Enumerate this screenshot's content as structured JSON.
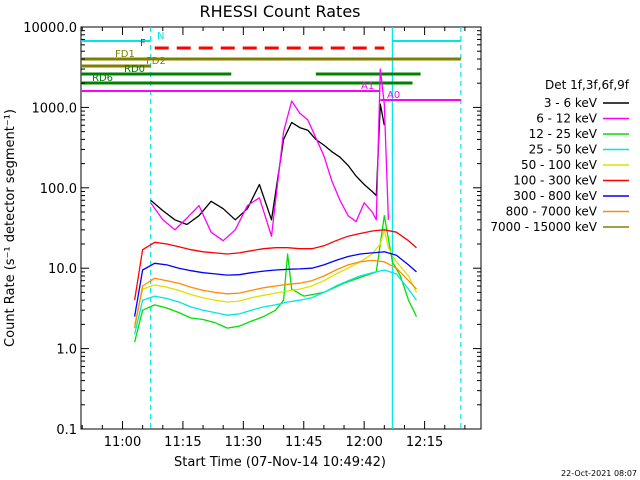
{
  "chart_data": {
    "type": "line",
    "title": "RHESSI Count Rates",
    "xlabel": "Start Time (07-Nov-14 10:49:42)",
    "ylabel": "Count Rate (s⁻¹ detector segment⁻¹)",
    "y_scale": "log",
    "ylim": [
      0.1,
      10000
    ],
    "xlim": [
      "10:49:42",
      "12:29:00"
    ],
    "x_ticks": [
      "11:00",
      "11:15",
      "11:30",
      "11:45",
      "12:00",
      "12:15"
    ],
    "y_ticks": [
      "0.1",
      "1.0",
      "10.0",
      "100.0",
      "1000.0",
      "10000.0"
    ],
    "grid": false,
    "legend": {
      "position": "right",
      "title": "Det 1f,3f,6f,9f",
      "entries": [
        {
          "label": "3 - 6 keV",
          "color": "#000000"
        },
        {
          "label": "6 - 12 keV",
          "color": "#ff00ff"
        },
        {
          "label": "12 - 25 keV",
          "color": "#00e000"
        },
        {
          "label": "25 - 50 keV",
          "color": "#00e5e5"
        },
        {
          "label": "50 - 100 keV",
          "color": "#e0e000"
        },
        {
          "label": "100 - 300 keV",
          "color": "#ff0000"
        },
        {
          "label": "300 - 800 keV",
          "color": "#0000ff"
        },
        {
          "label": "800 - 7000 keV",
          "color": "#ff8c00"
        },
        {
          "label": "7000 - 15000 keV",
          "color": "#808000"
        }
      ]
    },
    "series": [
      {
        "name": "3 - 6 keV",
        "color": "#000000",
        "x": [
          "11:07",
          "11:10",
          "11:13",
          "11:16",
          "11:19",
          "11:22",
          "11:25",
          "11:28",
          "11:31",
          "11:34",
          "11:37",
          "11:40",
          "11:42",
          "11:44",
          "11:46",
          "11:48",
          "11:50",
          "11:52",
          "11:54",
          "11:56",
          "11:58",
          "12:00",
          "12:02",
          "12:03",
          "12:04",
          "12:05"
        ],
        "y": [
          70,
          52,
          40,
          35,
          45,
          68,
          55,
          40,
          55,
          110,
          40,
          400,
          650,
          560,
          520,
          400,
          340,
          280,
          240,
          190,
          140,
          110,
          90,
          80,
          1100,
          600
        ]
      },
      {
        "name": "6 - 12 keV",
        "color": "#ff00ff",
        "x": [
          "11:07",
          "11:10",
          "11:13",
          "11:16",
          "11:19",
          "11:22",
          "11:25",
          "11:28",
          "11:31",
          "11:34",
          "11:37",
          "11:40",
          "11:42",
          "11:44",
          "11:46",
          "11:48",
          "11:50",
          "11:52",
          "11:54",
          "11:56",
          "11:58",
          "12:00",
          "12:02",
          "12:03",
          "12:04",
          "12:05",
          "12:06"
        ],
        "y": [
          65,
          40,
          30,
          42,
          60,
          28,
          22,
          30,
          60,
          75,
          25,
          500,
          1200,
          850,
          700,
          420,
          250,
          120,
          70,
          45,
          38,
          65,
          50,
          40,
          3000,
          1100,
          40
        ]
      },
      {
        "name": "12 - 25 keV",
        "color": "#00e000",
        "x": [
          "11:03",
          "11:05",
          "11:08",
          "11:11",
          "11:14",
          "11:17",
          "11:20",
          "11:23",
          "11:26",
          "11:29",
          "11:32",
          "11:35",
          "11:38",
          "11:40",
          "11:41",
          "11:42",
          "11:45",
          "11:50",
          "11:55",
          "12:00",
          "12:03",
          "12:05",
          "12:07",
          "12:09",
          "12:11",
          "12:13"
        ],
        "y": [
          1.2,
          3.0,
          3.5,
          3.2,
          2.8,
          2.4,
          2.3,
          2.1,
          1.8,
          1.9,
          2.2,
          2.5,
          3.0,
          4.0,
          15.0,
          5.5,
          4.5,
          5.0,
          6.5,
          8.0,
          9.0,
          45.0,
          12.0,
          8.0,
          4.0,
          2.5
        ]
      },
      {
        "name": "25 - 50 keV",
        "color": "#00e5e5",
        "x": [
          "11:03",
          "11:05",
          "11:08",
          "11:11",
          "11:14",
          "11:17",
          "11:20",
          "11:23",
          "11:26",
          "11:29",
          "11:32",
          "11:35",
          "11:38",
          "11:41",
          "11:44",
          "11:47",
          "11:50",
          "11:53",
          "11:56",
          "11:59",
          "12:02",
          "12:05",
          "12:08",
          "12:11",
          "12:13"
        ],
        "y": [
          1.5,
          4.0,
          4.5,
          4.2,
          3.8,
          3.3,
          3.0,
          2.8,
          2.6,
          2.7,
          3.0,
          3.3,
          3.5,
          3.8,
          4.0,
          4.3,
          5.0,
          6.0,
          7.0,
          8.0,
          8.8,
          9.5,
          8.5,
          5.5,
          4.0
        ]
      },
      {
        "name": "50 - 100 keV",
        "color": "#e0e000",
        "x": [
          "11:03",
          "11:05",
          "11:08",
          "11:11",
          "11:14",
          "11:17",
          "11:20",
          "11:23",
          "11:26",
          "11:29",
          "11:32",
          "11:35",
          "11:38",
          "11:41",
          "11:44",
          "11:47",
          "11:50",
          "11:53",
          "11:56",
          "11:59",
          "12:02",
          "12:04",
          "12:05",
          "12:06",
          "12:08",
          "12:11",
          "12:13"
        ],
        "y": [
          2.0,
          5.5,
          6.2,
          5.8,
          5.3,
          4.7,
          4.3,
          4.0,
          3.8,
          3.9,
          4.3,
          4.6,
          4.9,
          5.2,
          5.5,
          6.0,
          7.0,
          8.5,
          10.0,
          12.0,
          15.0,
          20.0,
          30.0,
          18.0,
          12.0,
          8.0,
          5.0
        ]
      },
      {
        "name": "100 - 300 keV",
        "color": "#ff0000",
        "x": [
          "11:03",
          "11:05",
          "11:08",
          "11:11",
          "11:14",
          "11:17",
          "11:20",
          "11:23",
          "11:26",
          "11:29",
          "11:32",
          "11:35",
          "11:38",
          "11:41",
          "11:44",
          "11:47",
          "11:50",
          "11:53",
          "11:56",
          "11:59",
          "12:02",
          "12:05",
          "12:08",
          "12:11",
          "12:13"
        ],
        "y": [
          4.0,
          17.0,
          21.0,
          20.0,
          18.5,
          17.0,
          16.0,
          15.5,
          15.0,
          15.5,
          16.5,
          17.5,
          18.0,
          18.0,
          17.5,
          17.5,
          19.0,
          22.0,
          25.0,
          27.0,
          29.0,
          30.0,
          28.0,
          22.0,
          18.0
        ]
      },
      {
        "name": "300 - 800 keV",
        "color": "#0000ff",
        "x": [
          "11:03",
          "11:05",
          "11:08",
          "11:11",
          "11:14",
          "11:17",
          "11:20",
          "11:23",
          "11:26",
          "11:29",
          "11:32",
          "11:35",
          "11:38",
          "11:41",
          "11:44",
          "11:47",
          "11:50",
          "11:53",
          "11:56",
          "11:59",
          "12:02",
          "12:05",
          "12:08",
          "12:11",
          "12:13"
        ],
        "y": [
          2.5,
          9.5,
          11.5,
          11.0,
          10.0,
          9.3,
          8.8,
          8.5,
          8.2,
          8.3,
          8.8,
          9.2,
          9.5,
          9.7,
          9.8,
          10.0,
          11.0,
          12.5,
          14.0,
          15.0,
          15.5,
          16.0,
          14.5,
          11.0,
          9.0
        ]
      },
      {
        "name": "800 - 7000 keV",
        "color": "#ff8c00",
        "x": [
          "11:03",
          "11:05",
          "11:08",
          "11:11",
          "11:14",
          "11:17",
          "11:20",
          "11:23",
          "11:26",
          "11:29",
          "11:32",
          "11:35",
          "11:38",
          "11:41",
          "11:44",
          "11:47",
          "11:50",
          "11:53",
          "11:56",
          "11:59",
          "12:02",
          "12:05",
          "12:08",
          "12:11",
          "12:13"
        ],
        "y": [
          1.8,
          6.0,
          7.5,
          7.0,
          6.5,
          5.8,
          5.3,
          5.0,
          4.8,
          4.9,
          5.3,
          5.7,
          6.0,
          6.3,
          6.5,
          7.0,
          8.0,
          9.5,
          11.0,
          12.0,
          12.5,
          12.0,
          10.0,
          7.0,
          5.5
        ]
      }
    ],
    "attenuator_bars": [
      {
        "label": "N",
        "color": "#00e5e5",
        "segments": [
          [
            "10:49:42",
            "11:07"
          ],
          [
            "12:07",
            "12:24"
          ]
        ]
      },
      {
        "label": "F",
        "color": "#ff0000",
        "dashed": true,
        "segments": [
          [
            "11:08",
            "12:05"
          ]
        ]
      },
      {
        "label": "FD1",
        "color": "#808000",
        "segments": [
          [
            "10:49:42",
            "12:24"
          ]
        ]
      },
      {
        "label": "FD2",
        "color": "#808000",
        "segments": [
          [
            "10:49:42",
            "11:07"
          ]
        ]
      },
      {
        "label": "RD0",
        "color": "#008000",
        "segments": [
          [
            "10:49:42",
            "11:27"
          ],
          [
            "11:48",
            "12:14"
          ]
        ]
      },
      {
        "label": "RD6",
        "color": "#008000",
        "segments": [
          [
            "10:49:42",
            "12:12"
          ]
        ]
      },
      {
        "label": "A1",
        "color": "#ff00ff",
        "segments": [
          [
            "10:49:42",
            "12:04"
          ]
        ]
      },
      {
        "label": "A0",
        "color": "#ff00ff",
        "segments": [
          [
            "12:04",
            "12:24"
          ]
        ]
      }
    ],
    "vertical_markers": [
      {
        "time": "11:07",
        "color": "#00e5e5",
        "style": "dashed"
      },
      {
        "time": "12:07",
        "color": "#00e5e5",
        "style": "solid"
      },
      {
        "time": "12:24",
        "color": "#00e5e5",
        "style": "dashed"
      }
    ]
  },
  "footer": {
    "date": "22-Oct-2021 08:07"
  }
}
